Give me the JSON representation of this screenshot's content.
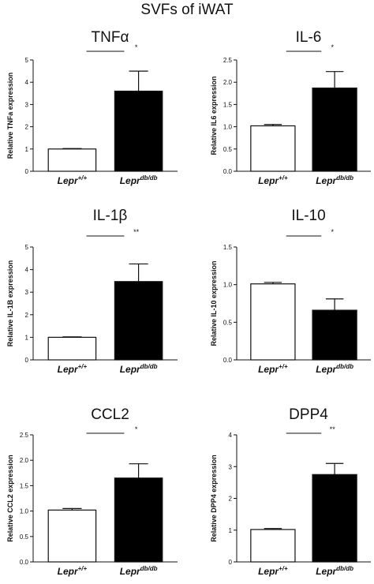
{
  "figure": {
    "title": "SVFs of iWAT"
  },
  "chart_data": [
    {
      "type": "bar",
      "title": "TNFα",
      "ylabel": "Relative TNFa expression",
      "ylim": [
        0,
        5
      ],
      "yticks": [
        "0",
        "1",
        "2",
        "3",
        "4",
        "5"
      ],
      "categories": [
        {
          "base": "Lepr",
          "sup": "+/+"
        },
        {
          "base": "Lepr",
          "sup": "db/db"
        }
      ],
      "values": [
        1.0,
        3.6
      ],
      "errors": [
        0.02,
        0.9
      ],
      "bar_colors": [
        "#ffffff",
        "#000000"
      ],
      "significance": "*",
      "grid": false
    },
    {
      "type": "bar",
      "title": "IL-6",
      "ylabel": "Relative IL6 expression",
      "ylim": [
        0,
        2.5
      ],
      "yticks": [
        "0.0",
        "0.5",
        "1.0",
        "1.5",
        "2.0",
        "2.5"
      ],
      "categories": [
        {
          "base": "Lepr",
          "sup": "+/+"
        },
        {
          "base": "Lepr",
          "sup": "db/db"
        }
      ],
      "values": [
        1.02,
        1.87
      ],
      "errors": [
        0.03,
        0.37
      ],
      "bar_colors": [
        "#ffffff",
        "#000000"
      ],
      "significance": "*",
      "grid": false
    },
    {
      "type": "bar",
      "title": "IL-1β",
      "ylabel": "Relative IL-1B expression",
      "ylim": [
        0,
        5
      ],
      "yticks": [
        "0",
        "1",
        "2",
        "3",
        "4",
        "5"
      ],
      "categories": [
        {
          "base": "Lepr",
          "sup": "+/+"
        },
        {
          "base": "Lepr",
          "sup": "db/db"
        }
      ],
      "values": [
        1.0,
        3.47
      ],
      "errors": [
        0.02,
        0.78
      ],
      "bar_colors": [
        "#ffffff",
        "#000000"
      ],
      "significance": "**",
      "grid": false
    },
    {
      "type": "bar",
      "title": "IL-10",
      "ylabel": "Relative IL-10 expression",
      "ylim": [
        0,
        1.5
      ],
      "yticks": [
        "0.0",
        "0.5",
        "1.0",
        "1.5"
      ],
      "categories": [
        {
          "base": "Lepr",
          "sup": "+/+"
        },
        {
          "base": "Lepr",
          "sup": "db/db"
        }
      ],
      "values": [
        1.01,
        0.66
      ],
      "errors": [
        0.02,
        0.15
      ],
      "bar_colors": [
        "#ffffff",
        "#000000"
      ],
      "significance": "*",
      "grid": false
    },
    {
      "type": "bar",
      "title": "CCL2",
      "ylabel": "Relative CCL2 expression",
      "ylim": [
        0,
        2.5
      ],
      "yticks": [
        "0.0",
        "0.5",
        "1.0",
        "1.5",
        "2.0",
        "2.5"
      ],
      "categories": [
        {
          "base": "Lepr",
          "sup": "+/+"
        },
        {
          "base": "Lepr",
          "sup": "db/db"
        }
      ],
      "values": [
        1.02,
        1.65
      ],
      "errors": [
        0.03,
        0.28
      ],
      "bar_colors": [
        "#ffffff",
        "#000000"
      ],
      "significance": "*",
      "grid": false
    },
    {
      "type": "bar",
      "title": "DPP4",
      "ylabel": "Relative DPP4 expression",
      "ylim": [
        0,
        4
      ],
      "yticks": [
        "0",
        "1",
        "2",
        "3",
        "4"
      ],
      "categories": [
        {
          "base": "Lepr",
          "sup": "+/+"
        },
        {
          "base": "Lepr",
          "sup": "db/db"
        }
      ],
      "values": [
        1.02,
        2.75
      ],
      "errors": [
        0.03,
        0.35
      ],
      "bar_colors": [
        "#ffffff",
        "#000000"
      ],
      "significance": "**",
      "grid": false
    }
  ]
}
